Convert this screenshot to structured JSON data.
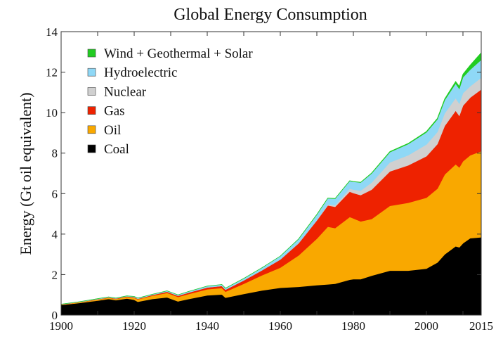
{
  "chart_data": {
    "type": "area",
    "stacked": true,
    "title": "Global Energy Consumption",
    "xlabel": "",
    "ylabel": "Energy (Gt oil equivalent)",
    "xlim": [
      1900,
      2015
    ],
    "ylim": [
      0,
      14
    ],
    "x_ticks": [
      1900,
      1920,
      1940,
      1960,
      1980,
      2000,
      2015
    ],
    "y_ticks": [
      0,
      2,
      4,
      6,
      8,
      10,
      12,
      14
    ],
    "grid": false,
    "legend_position": "top-left",
    "x": [
      1900,
      1905,
      1910,
      1913,
      1915,
      1918,
      1920,
      1921,
      1925,
      1929,
      1932,
      1935,
      1940,
      1944,
      1945,
      1950,
      1955,
      1960,
      1965,
      1970,
      1973,
      1975,
      1979,
      1980,
      1982,
      1985,
      1990,
      1995,
      2000,
      2003,
      2005,
      2008,
      2009,
      2010,
      2012,
      2015
    ],
    "series": [
      {
        "name": "Coal",
        "color": "#000000",
        "values": [
          0.5,
          0.6,
          0.72,
          0.8,
          0.74,
          0.82,
          0.76,
          0.66,
          0.8,
          0.88,
          0.68,
          0.8,
          0.98,
          1.02,
          0.86,
          1.05,
          1.22,
          1.35,
          1.4,
          1.48,
          1.52,
          1.55,
          1.75,
          1.78,
          1.78,
          1.95,
          2.2,
          2.2,
          2.3,
          2.6,
          3.0,
          3.4,
          3.35,
          3.55,
          3.8,
          3.85
        ]
      },
      {
        "name": "Oil",
        "color": "#f9a800",
        "values": [
          0.02,
          0.04,
          0.05,
          0.06,
          0.06,
          0.08,
          0.1,
          0.12,
          0.16,
          0.22,
          0.22,
          0.25,
          0.3,
          0.32,
          0.3,
          0.5,
          0.75,
          1.0,
          1.55,
          2.3,
          2.85,
          2.75,
          3.1,
          3.0,
          2.85,
          2.8,
          3.2,
          3.35,
          3.5,
          3.65,
          3.95,
          4.05,
          3.95,
          4.05,
          4.1,
          4.25
        ]
      },
      {
        "name": "Gas",
        "color": "#ee2200",
        "values": [
          0.01,
          0.01,
          0.02,
          0.02,
          0.02,
          0.03,
          0.03,
          0.03,
          0.04,
          0.06,
          0.06,
          0.07,
          0.09,
          0.1,
          0.1,
          0.17,
          0.25,
          0.4,
          0.6,
          0.9,
          1.05,
          1.05,
          1.25,
          1.25,
          1.3,
          1.45,
          1.7,
          1.85,
          2.05,
          2.2,
          2.4,
          2.65,
          2.55,
          2.75,
          2.85,
          3.05
        ]
      },
      {
        "name": "Nuclear",
        "color": "#d0d0d0",
        "values": [
          0,
          0,
          0,
          0,
          0,
          0,
          0,
          0,
          0,
          0,
          0,
          0,
          0,
          0,
          0,
          0,
          0,
          0,
          0.01,
          0.02,
          0.05,
          0.08,
          0.15,
          0.17,
          0.22,
          0.35,
          0.45,
          0.5,
          0.58,
          0.6,
          0.62,
          0.62,
          0.6,
          0.62,
          0.56,
          0.58
        ]
      },
      {
        "name": "Hydroelectric",
        "color": "#8fd8f6",
        "values": [
          0.01,
          0.01,
          0.02,
          0.02,
          0.02,
          0.02,
          0.03,
          0.03,
          0.03,
          0.04,
          0.04,
          0.05,
          0.06,
          0.07,
          0.07,
          0.09,
          0.12,
          0.16,
          0.2,
          0.26,
          0.3,
          0.32,
          0.38,
          0.39,
          0.4,
          0.45,
          0.5,
          0.55,
          0.6,
          0.62,
          0.65,
          0.72,
          0.73,
          0.78,
          0.82,
          0.88
        ]
      },
      {
        "name": "Wind + Geothermal + Solar",
        "color": "#22cc22",
        "values": [
          0,
          0,
          0,
          0,
          0,
          0,
          0,
          0,
          0,
          0,
          0,
          0,
          0,
          0,
          0,
          0,
          0,
          0,
          0,
          0.01,
          0.01,
          0.01,
          0.01,
          0.01,
          0.01,
          0.02,
          0.03,
          0.03,
          0.04,
          0.05,
          0.06,
          0.1,
          0.12,
          0.15,
          0.22,
          0.35
        ]
      }
    ],
    "legend": [
      {
        "label": "Wind + Geothermal + Solar",
        "color": "#22cc22"
      },
      {
        "label": "Hydroelectric",
        "color": "#8fd8f6"
      },
      {
        "label": "Nuclear",
        "color": "#d0d0d0"
      },
      {
        "label": "Gas",
        "color": "#ee2200"
      },
      {
        "label": "Oil",
        "color": "#f9a800"
      },
      {
        "label": "Coal",
        "color": "#000000"
      }
    ]
  }
}
